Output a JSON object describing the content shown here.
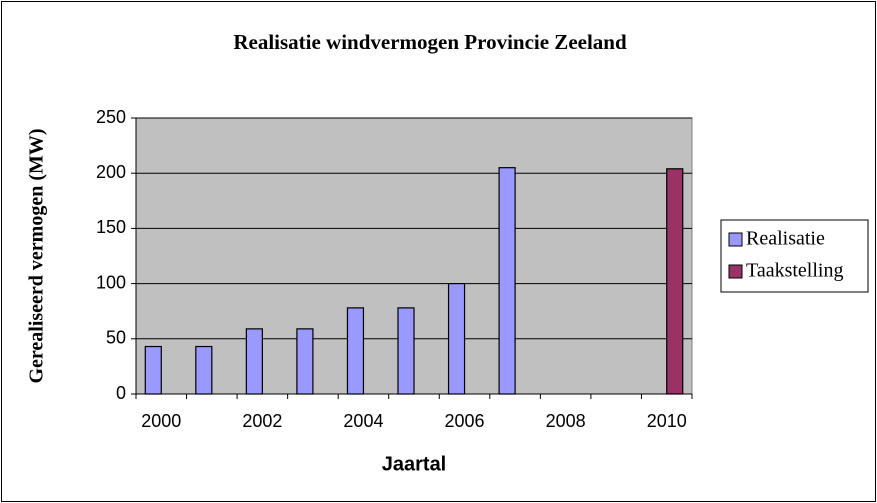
{
  "chart_data": {
    "type": "bar",
    "title": "Realisatie windvermogen Provincie Zeeland",
    "x_label": "Jaartal",
    "y_label": "Gerealiseerd vermogen (MW)",
    "categories": [
      "2000",
      null,
      "2002",
      null,
      "2004",
      null,
      "2006",
      null,
      "2008",
      null,
      "2010"
    ],
    "series": [
      {
        "name": "Realisatie",
        "color": "#9999ff",
        "values": [
          43,
          43,
          59,
          59,
          78,
          78,
          100,
          205,
          null,
          null,
          null
        ]
      },
      {
        "name": "Taakstelling",
        "color": "#993366",
        "values": [
          null,
          null,
          null,
          null,
          null,
          null,
          null,
          null,
          null,
          null,
          204
        ]
      }
    ],
    "ylim": [
      0,
      250
    ],
    "yticks": [
      0,
      50,
      100,
      150,
      200,
      250
    ],
    "grid": true,
    "legend": "right"
  }
}
